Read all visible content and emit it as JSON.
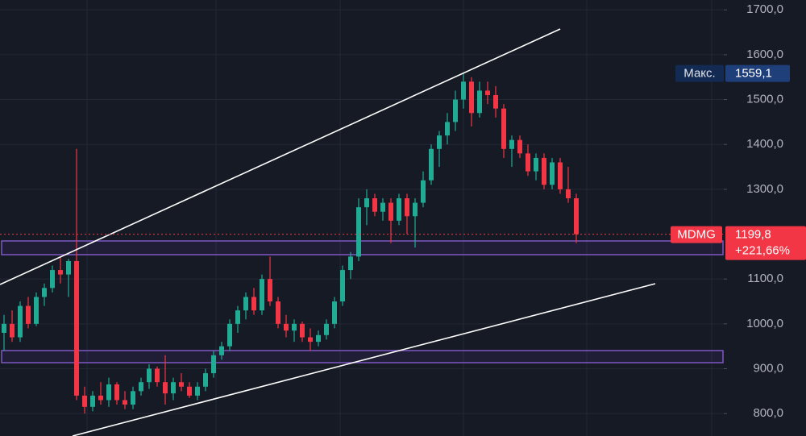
{
  "chart_data": {
    "type": "candlestick",
    "open": [
      980,
      1000,
      970,
      1040,
      1000,
      1060,
      1080,
      1120,
      1110,
      1140,
      840,
      815,
      840,
      830,
      865,
      830,
      820,
      850,
      870,
      900,
      870,
      845,
      870,
      860,
      840,
      860,
      890,
      930,
      950,
      1000,
      1030,
      1060,
      1030,
      1100,
      1050,
      1000,
      985,
      1000,
      970,
      960,
      975,
      1000,
      1050,
      1120,
      1150,
      1260,
      1280,
      1250,
      1270,
      1230,
      1280,
      1240,
      1270,
      1320,
      1390,
      1420,
      1450,
      1500,
      1540,
      1470,
      1520,
      1510,
      1480,
      1390,
      1410,
      1380,
      1340,
      1370,
      1310,
      1360,
      1300,
      1280
    ],
    "high": [
      1020,
      1030,
      1050,
      1060,
      1070,
      1090,
      1130,
      1150,
      1145,
      1390,
      860,
      850,
      870,
      880,
      870,
      850,
      860,
      880,
      910,
      905,
      930,
      880,
      890,
      870,
      870,
      900,
      940,
      960,
      1010,
      1040,
      1070,
      1080,
      1110,
      1150,
      1060,
      1020,
      1010,
      1005,
      990,
      985,
      1010,
      1060,
      1130,
      1160,
      1280,
      1300,
      1290,
      1280,
      1280,
      1290,
      1290,
      1280,
      1340,
      1400,
      1430,
      1470,
      1520,
      1559.1,
      1550,
      1540,
      1540,
      1530,
      1490,
      1420,
      1420,
      1400,
      1380,
      1380,
      1370,
      1370,
      1350,
      1290
    ],
    "low": [
      940,
      960,
      960,
      990,
      995,
      1040,
      1070,
      1090,
      1060,
      830,
      800,
      805,
      820,
      815,
      820,
      810,
      810,
      840,
      855,
      860,
      820,
      830,
      850,
      835,
      830,
      850,
      880,
      920,
      940,
      980,
      1010,
      1020,
      1020,
      1040,
      990,
      970,
      960,
      960,
      940,
      950,
      965,
      990,
      1040,
      1100,
      1140,
      1220,
      1240,
      1230,
      1180,
      1220,
      1200,
      1170,
      1260,
      1310,
      1350,
      1400,
      1430,
      1480,
      1440,
      1460,
      1490,
      1460,
      1370,
      1350,
      1370,
      1330,
      1320,
      1300,
      1300,
      1290,
      1270,
      1180
    ],
    "close": [
      1000,
      970,
      1040,
      1000,
      1060,
      1080,
      1120,
      1110,
      1140,
      840,
      815,
      840,
      830,
      865,
      830,
      820,
      850,
      870,
      900,
      870,
      845,
      870,
      860,
      840,
      860,
      890,
      930,
      950,
      1000,
      1030,
      1060,
      1030,
      1100,
      1050,
      1000,
      985,
      1000,
      970,
      960,
      975,
      1000,
      1050,
      1120,
      1150,
      1260,
      1280,
      1250,
      1270,
      1230,
      1280,
      1240,
      1270,
      1320,
      1390,
      1420,
      1450,
      1500,
      1540,
      1470,
      1520,
      1510,
      1480,
      1390,
      1410,
      1380,
      1340,
      1370,
      1310,
      1360,
      1300,
      1280,
      1199.8
    ],
    "up_color": "#22ab94",
    "down_color": "#f23645",
    "ylim": [
      750,
      1722
    ],
    "yticks": [
      {
        "value": 800,
        "label": "800,0"
      },
      {
        "value": 900,
        "label": "900,0"
      },
      {
        "value": 1000,
        "label": "1000,0"
      },
      {
        "value": 1100,
        "label": "1100,0"
      },
      {
        "value": 1300,
        "label": "1300,0"
      },
      {
        "value": 1400,
        "label": "1400,0"
      },
      {
        "value": 1500,
        "label": "1500,0"
      },
      {
        "value": 1600,
        "label": "1600,0"
      },
      {
        "value": 1700,
        "label": "1700,0"
      }
    ],
    "grid": true,
    "max_marker": {
      "name": "Макс.",
      "value": 1559.1,
      "label": "1559,1"
    },
    "last_price": {
      "symbol": "MDMG",
      "value": 1199.8,
      "label": "1199,8",
      "change": "+221,66%"
    }
  }
}
